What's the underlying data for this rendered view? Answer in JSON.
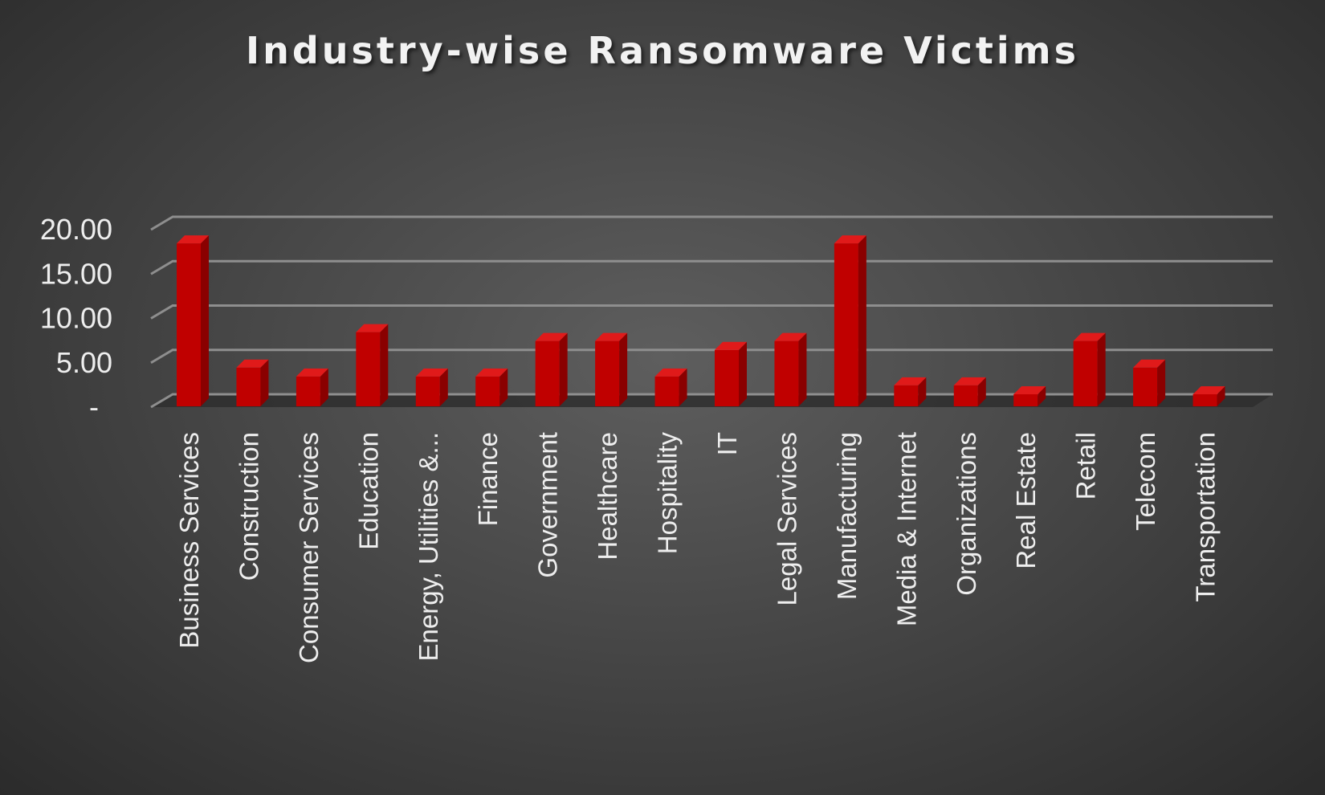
{
  "chart_data": {
    "type": "bar",
    "title": "Industry-wise Ransomware Victims",
    "xlabel": "",
    "ylabel": "",
    "ylim": [
      0,
      20
    ],
    "yticks": [
      {
        "value": 0,
        "label": "-"
      },
      {
        "value": 5,
        "label": "5.00"
      },
      {
        "value": 10,
        "label": "10.00"
      },
      {
        "value": 15,
        "label": "15.00"
      },
      {
        "value": 20,
        "label": "20.00"
      }
    ],
    "grid": true,
    "legend": "none",
    "bar_color": "#c00000",
    "categories": [
      "Business Services",
      "Construction",
      "Consumer Services",
      "Education",
      "Energy, Utilities &...",
      "Finance",
      "Government",
      "Healthcare",
      "Hospitality",
      "IT",
      "Legal Services",
      "Manufacturing",
      "Media & Internet",
      "Organizations",
      "Real Estate",
      "Retail",
      "Telecom",
      "Transportation"
    ],
    "values": [
      18,
      4,
      3,
      8,
      3,
      3,
      7,
      7,
      3,
      6,
      7,
      18,
      2,
      2,
      1,
      7,
      4,
      1
    ]
  }
}
